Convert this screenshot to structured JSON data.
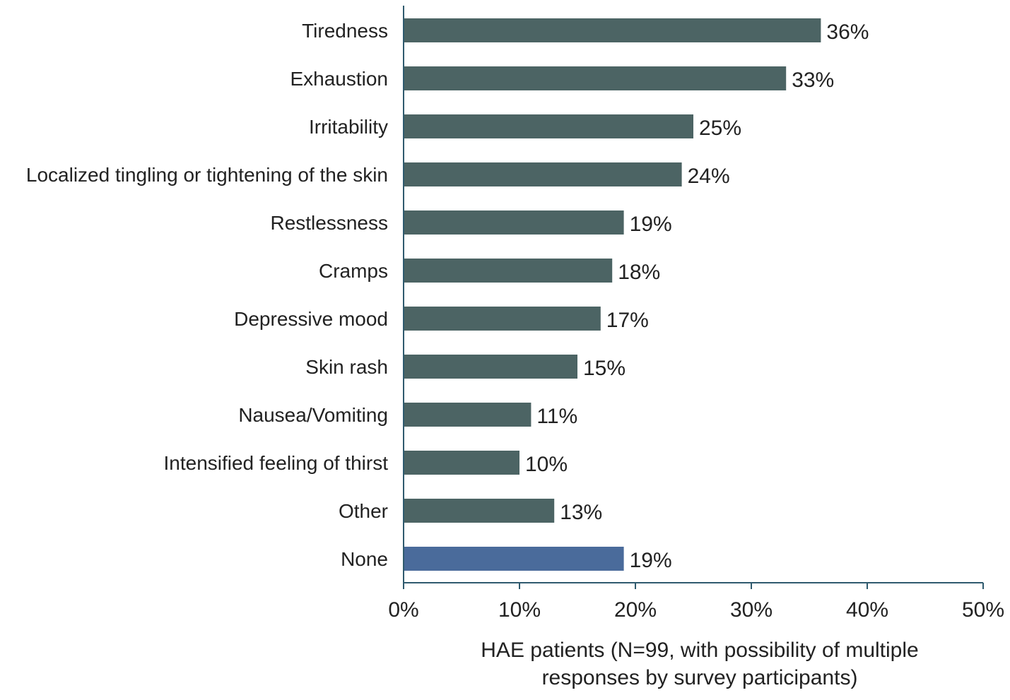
{
  "chart_data": {
    "type": "bar",
    "orientation": "horizontal",
    "categories": [
      "Tiredness",
      "Exhaustion",
      "Irritability",
      "Localized tingling or tightening of the skin",
      "Restlessness",
      "Cramps",
      "Depressive mood",
      "Skin rash",
      "Nausea/Vomiting",
      "Intensified feeling of thirst",
      "Other",
      "None"
    ],
    "values": [
      36,
      33,
      25,
      24,
      19,
      18,
      17,
      15,
      11,
      10,
      13,
      19
    ],
    "value_labels": [
      "36%",
      "33%",
      "25%",
      "24%",
      "19%",
      "18%",
      "17%",
      "15%",
      "11%",
      "10%",
      "13%",
      "19%"
    ],
    "bar_colors": [
      "#4c6464",
      "#4c6464",
      "#4c6464",
      "#4c6464",
      "#4c6464",
      "#4c6464",
      "#4c6464",
      "#4c6464",
      "#4c6464",
      "#4c6464",
      "#4c6464",
      "#4a6b9b"
    ],
    "x_ticks": [
      "0%",
      "10%",
      "20%",
      "30%",
      "40%",
      "50%"
    ],
    "xlim": [
      0,
      50
    ],
    "title": "",
    "xlabel_lines": [
      "HAE patients (N=99, with possibility of multiple",
      "responses by survey participants)"
    ],
    "ylabel": "",
    "grid": false,
    "legend": "none",
    "axis_color": "#2f5a6e"
  }
}
